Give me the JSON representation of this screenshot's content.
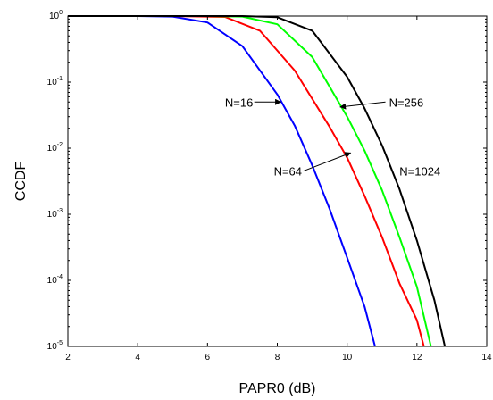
{
  "chart_data": {
    "type": "line",
    "xlabel": "PAPR0 (dB)",
    "ylabel": "CCDF",
    "xlim": [
      2,
      14
    ],
    "ylim": [
      1e-05,
      1
    ],
    "yscale": "log",
    "x_ticks": [
      "2",
      "4",
      "6",
      "8",
      "10",
      "12",
      "14"
    ],
    "y_ticks": [
      {
        "base": "10",
        "exp": "0"
      },
      {
        "base": "10",
        "exp": "-1"
      },
      {
        "base": "10",
        "exp": "-2"
      },
      {
        "base": "10",
        "exp": "-3"
      },
      {
        "base": "10",
        "exp": "-4"
      },
      {
        "base": "10",
        "exp": "-5"
      }
    ],
    "grid": false,
    "series": [
      {
        "name": "N=16",
        "color": "#0000ff",
        "points": [
          [
            2,
            1
          ],
          [
            4,
            1
          ],
          [
            5,
            0.98
          ],
          [
            6,
            0.8
          ],
          [
            7,
            0.35
          ],
          [
            8,
            0.065
          ],
          [
            8.5,
            0.022
          ],
          [
            9,
            0.0055
          ],
          [
            9.5,
            0.0012
          ],
          [
            10,
            0.00022
          ],
          [
            10.5,
            4e-05
          ],
          [
            10.8,
            1e-05
          ]
        ]
      },
      {
        "name": "N=64",
        "color": "#ff0000",
        "points": [
          [
            2,
            1
          ],
          [
            5,
            1
          ],
          [
            6.5,
            0.97
          ],
          [
            7.5,
            0.6
          ],
          [
            8.5,
            0.15
          ],
          [
            9.5,
            0.021
          ],
          [
            10,
            0.0072
          ],
          [
            10.5,
            0.0019
          ],
          [
            11,
            0.00045
          ],
          [
            11.5,
            9e-05
          ],
          [
            12,
            2.5e-05
          ],
          [
            12.2,
            1e-05
          ]
        ]
      },
      {
        "name": "N=256",
        "color": "#00ff00",
        "points": [
          [
            2,
            1
          ],
          [
            6,
            1
          ],
          [
            7,
            0.98
          ],
          [
            8,
            0.75
          ],
          [
            9,
            0.24
          ],
          [
            10,
            0.03
          ],
          [
            10.5,
            0.0092
          ],
          [
            11,
            0.0023
          ],
          [
            11.5,
            0.00045
          ],
          [
            12,
            8e-05
          ],
          [
            12.4,
            1e-05
          ]
        ]
      },
      {
        "name": "N=1024",
        "color": "#000000",
        "points": [
          [
            2,
            1
          ],
          [
            7,
            1
          ],
          [
            8,
            0.96
          ],
          [
            9,
            0.6
          ],
          [
            10,
            0.12
          ],
          [
            10.5,
            0.04
          ],
          [
            11,
            0.011
          ],
          [
            11.5,
            0.0024
          ],
          [
            12,
            0.0004
          ],
          [
            12.5,
            5e-05
          ],
          [
            12.8,
            1e-05
          ]
        ]
      }
    ],
    "annotations": [
      {
        "text": "N=16",
        "x": 6.5,
        "y": 0.05,
        "arrow_to": [
          8.1,
          0.05
        ]
      },
      {
        "text": "N=64",
        "x": 7.9,
        "y": 0.0045,
        "arrow_to": [
          10.1,
          0.0085
        ]
      },
      {
        "text": "N=256",
        "x": 11.2,
        "y": 0.05,
        "arrow_to": [
          9.8,
          0.042
        ]
      },
      {
        "text": "N=1024",
        "x": 11.5,
        "y": 0.0045,
        "arrow_to": null
      }
    ]
  }
}
